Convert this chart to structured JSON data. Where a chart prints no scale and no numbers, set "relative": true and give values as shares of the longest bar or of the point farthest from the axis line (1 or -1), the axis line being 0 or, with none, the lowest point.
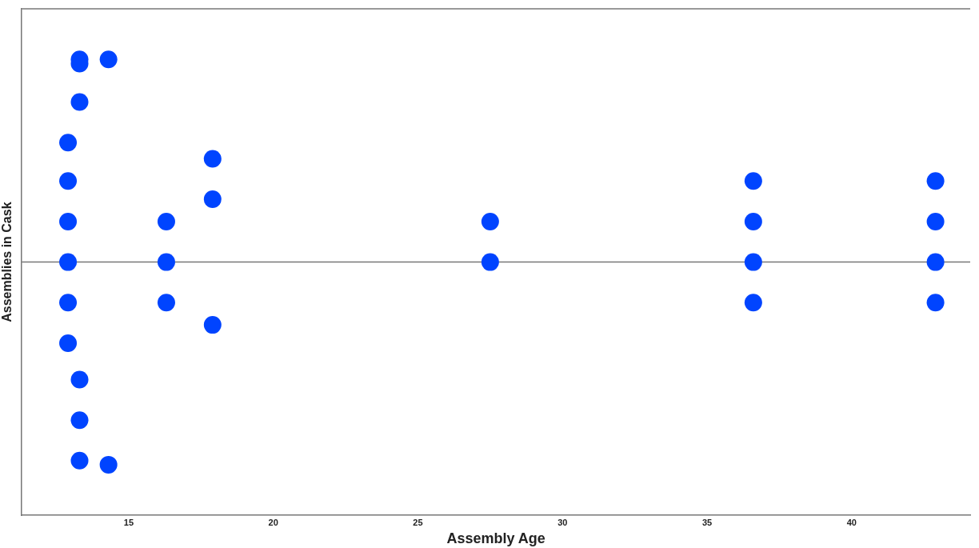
{
  "chart_data": {
    "type": "scatter",
    "xlabel": "Assembly Age",
    "ylabel": "Assemblies in Cask",
    "relative": true,
    "tick_labels": "x",
    "marker": "circle",
    "grid": false,
    "legend": false,
    "xlim": [
      11.3,
      44.1
    ],
    "xticks": [
      15,
      20,
      25,
      30,
      35,
      40
    ],
    "series": [
      {
        "color": "#0044ff",
        "x": [
          12.9,
          12.9,
          12.9,
          12.9,
          12.9,
          12.9,
          13.3,
          13.3,
          13.3,
          13.3,
          13.3,
          13.3,
          14.3,
          14.3,
          16.3,
          16.3,
          16.3,
          17.9,
          17.9,
          17.9,
          27.5,
          27.5,
          36.6,
          36.6,
          36.6,
          36.6,
          42.9,
          42.9,
          42.9,
          42.9
        ],
        "values": [
          0.59,
          0.4,
          0.2,
          0,
          -0.2,
          -0.4,
          1.0,
          0.98,
          0.79,
          -0.58,
          -0.78,
          -0.98,
          1.0,
          -1.0,
          0.2,
          0,
          -0.2,
          0.51,
          0.31,
          -0.31,
          0.2,
          0,
          0.4,
          0.2,
          0,
          -0.2,
          0.4,
          0.2,
          0,
          -0.2
        ]
      }
    ]
  }
}
